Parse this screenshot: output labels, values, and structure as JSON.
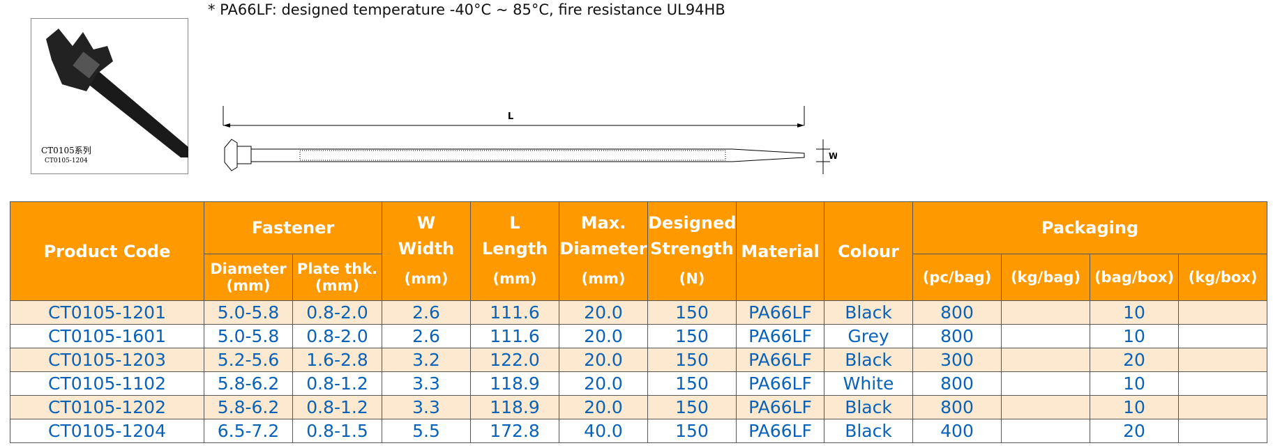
{
  "note": "* PA66LF: designed temperature -40°C ~ 85°C, fire resistance UL94HB",
  "photo": {
    "series_label": "CT0105系列",
    "code_label": "CT0105-1204"
  },
  "drawing": {
    "length_label": "L",
    "width_label": "W"
  },
  "table": {
    "headers": {
      "product_code": "Product Code",
      "fastener": {
        "title": "Fastener",
        "diameter": "Diameter",
        "diameter_unit": "(mm)",
        "plate": "Plate thk.",
        "plate_unit": "(mm)"
      },
      "width": {
        "symbol": "W",
        "name": "Width",
        "unit": "(mm)"
      },
      "length": {
        "symbol": "L",
        "name": "Length",
        "unit": "(mm)"
      },
      "max_diameter": {
        "line1": "Max.",
        "line2": "Diameter",
        "unit": "(mm)"
      },
      "strength": {
        "line1": "Designed",
        "line2": "Strength",
        "unit": "(N)"
      },
      "material": "Material",
      "colour": "Colour",
      "packaging": {
        "title": "Packaging",
        "pc_bag": "(pc/bag)",
        "kg_bag": "(kg/bag)",
        "bag_box": "(bag/box)",
        "kg_box": "(kg/box)"
      }
    },
    "rows": [
      {
        "code": "CT0105-1201",
        "diameter": "5.0-5.8",
        "plate": "0.8-2.0",
        "width": "2.6",
        "length": "111.6",
        "max_diameter": "20.0",
        "strength": "150",
        "material": "PA66LF",
        "colour": "Black",
        "pc_bag": "800",
        "bag_box": "10"
      },
      {
        "code": "CT0105-1601",
        "diameter": "5.0-5.8",
        "plate": "0.8-2.0",
        "width": "2.6",
        "length": "111.6",
        "max_diameter": "20.0",
        "strength": "150",
        "material": "PA66LF",
        "colour": "Grey",
        "pc_bag": "800",
        "bag_box": "10"
      },
      {
        "code": "CT0105-1203",
        "diameter": "5.2-5.6",
        "plate": "1.6-2.8",
        "width": "3.2",
        "length": "122.0",
        "max_diameter": "20.0",
        "strength": "150",
        "material": "PA66LF",
        "colour": "Black",
        "pc_bag": "300",
        "bag_box": "20"
      },
      {
        "code": "CT0105-1102",
        "diameter": "5.8-6.2",
        "plate": "0.8-1.2",
        "width": "3.3",
        "length": "118.9",
        "max_diameter": "20.0",
        "strength": "150",
        "material": "PA66LF",
        "colour": "White",
        "pc_bag": "800",
        "bag_box": "10"
      },
      {
        "code": "CT0105-1202",
        "diameter": "5.8-6.2",
        "plate": "0.8-1.2",
        "width": "3.3",
        "length": "118.9",
        "max_diameter": "20.0",
        "strength": "150",
        "material": "PA66LF",
        "colour": "Black",
        "pc_bag": "800",
        "bag_box": "10"
      },
      {
        "code": "CT0105-1204",
        "diameter": "6.5-7.2",
        "plate": "0.8-1.5",
        "width": "5.5",
        "length": "172.8",
        "max_diameter": "40.0",
        "strength": "150",
        "material": "PA66LF",
        "colour": "Black",
        "pc_bag": "400",
        "bag_box": "20"
      }
    ]
  }
}
